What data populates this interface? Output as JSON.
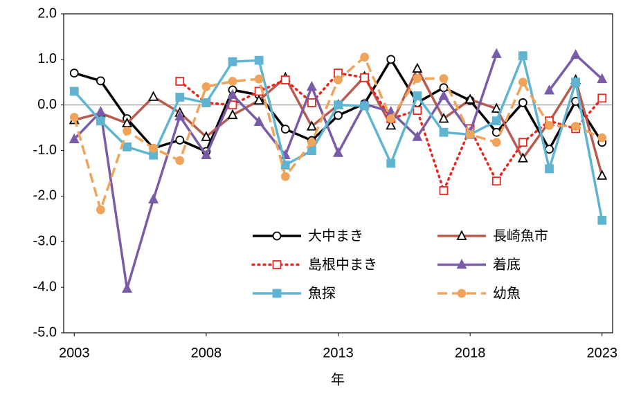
{
  "chart_data": {
    "type": "line",
    "x_label": "年",
    "x": [
      2003,
      2004,
      2005,
      2006,
      2007,
      2008,
      2009,
      2010,
      2011,
      2012,
      2013,
      2014,
      2015,
      2016,
      2017,
      2018,
      2019,
      2020,
      2021,
      2022,
      2023
    ],
    "xlim": [
      2002.6,
      2023.4
    ],
    "xticks": [
      2003,
      2008,
      2013,
      2018,
      2023
    ],
    "ylim": [
      -5,
      2
    ],
    "yticks": [
      {
        "value": -5,
        "label": "-5.0"
      },
      {
        "value": -4,
        "label": "-4.0"
      },
      {
        "value": -3,
        "label": "-3.0"
      },
      {
        "value": -2,
        "label": "-2.0"
      },
      {
        "value": -1,
        "label": "-1.0"
      },
      {
        "value": 0,
        "label": "0.0"
      },
      {
        "value": 1,
        "label": "1.0"
      },
      {
        "value": 2,
        "label": "2.0"
      }
    ],
    "zero_line": true,
    "series": [
      {
        "name": "大中まき",
        "color": "#000000",
        "dash": "solid",
        "marker": "circle",
        "filled": false,
        "values": [
          0.7,
          0.53,
          -0.3,
          -0.95,
          -0.77,
          -1.02,
          0.33,
          0.22,
          -0.53,
          -0.78,
          -0.23,
          0.03,
          1.0,
          0.05,
          0.38,
          0.1,
          -0.6,
          0.05,
          -0.97,
          0.08,
          -0.82
        ]
      },
      {
        "name": "長崎魚市",
        "color": "#b85a4e",
        "dash": "solid",
        "marker": "triangle",
        "filled": false,
        "values": [
          -0.33,
          -0.18,
          -0.4,
          0.18,
          -0.17,
          -0.7,
          -0.22,
          0.1,
          0.6,
          -0.47,
          0.0,
          0.62,
          -0.45,
          0.8,
          -0.3,
          0.12,
          -0.08,
          -1.17,
          -0.37,
          0.55,
          -1.55
        ]
      },
      {
        "name": "島根中まき",
        "color": "#e8271f",
        "dash": "dotted",
        "marker": "square",
        "filled": false,
        "values": [
          null,
          null,
          null,
          null,
          0.52,
          0.05,
          0.0,
          0.3,
          0.55,
          0.05,
          0.7,
          0.6,
          -0.3,
          -0.12,
          -1.88,
          -0.52,
          -1.67,
          -0.82,
          -0.35,
          -0.52,
          0.15
        ]
      },
      {
        "name": "着底",
        "color": "#7a5ba8",
        "dash": "solid",
        "marker": "triangle",
        "filled": true,
        "values": [
          -0.75,
          -0.15,
          -4.03,
          -2.07,
          -0.25,
          -1.1,
          0.22,
          -0.37,
          -1.1,
          0.4,
          -1.05,
          0.02,
          -0.15,
          -0.7,
          0.2,
          -0.6,
          1.12,
          null,
          0.32,
          1.1,
          0.57
        ]
      },
      {
        "name": "魚探",
        "color": "#5fb4d2",
        "dash": "solid",
        "marker": "square",
        "filled": true,
        "values": [
          0.3,
          -0.35,
          -0.92,
          -1.1,
          0.17,
          0.05,
          0.95,
          0.98,
          -1.32,
          -1.0,
          0.0,
          -0.02,
          -1.28,
          0.2,
          -0.6,
          -0.65,
          -0.35,
          1.08,
          -1.4,
          0.5,
          -2.53
        ]
      },
      {
        "name": "幼魚",
        "color": "#f0a35a",
        "dash": "dashed",
        "marker": "circle",
        "filled": true,
        "values": [
          -0.27,
          -2.3,
          -0.57,
          -0.95,
          -1.22,
          0.4,
          0.52,
          0.57,
          -1.57,
          -0.82,
          0.55,
          1.05,
          -0.3,
          0.58,
          0.58,
          -0.65,
          -0.82,
          0.5,
          -0.45,
          -0.47,
          -0.72
        ]
      }
    ]
  }
}
